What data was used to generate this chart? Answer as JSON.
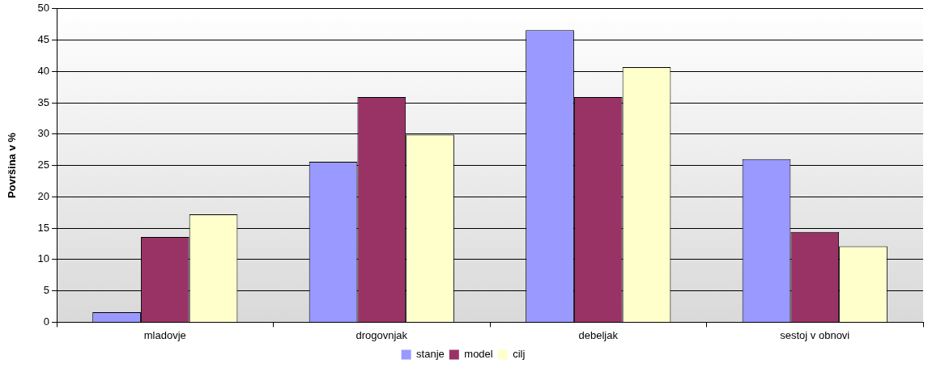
{
  "chart_data": {
    "type": "bar",
    "ylabel": "Površina v %",
    "categories": [
      "mladovje",
      "drogovnjak",
      "debeljak",
      "sestoj v obnovi"
    ],
    "series": [
      {
        "name": "stanje",
        "color": "#9999ff",
        "values": [
          1.6,
          25.6,
          46.6,
          26.0
        ]
      },
      {
        "name": "model",
        "color": "#993366",
        "values": [
          13.6,
          35.9,
          35.9,
          14.4
        ]
      },
      {
        "name": "cilj",
        "color": "#ffffcc",
        "values": [
          17.2,
          29.9,
          40.7,
          12.1
        ]
      }
    ],
    "ylim": [
      0,
      50
    ],
    "yticks": [
      0,
      5,
      10,
      15,
      20,
      25,
      30,
      35,
      40,
      45,
      50
    ],
    "grid": "y",
    "legend": "bottom"
  }
}
